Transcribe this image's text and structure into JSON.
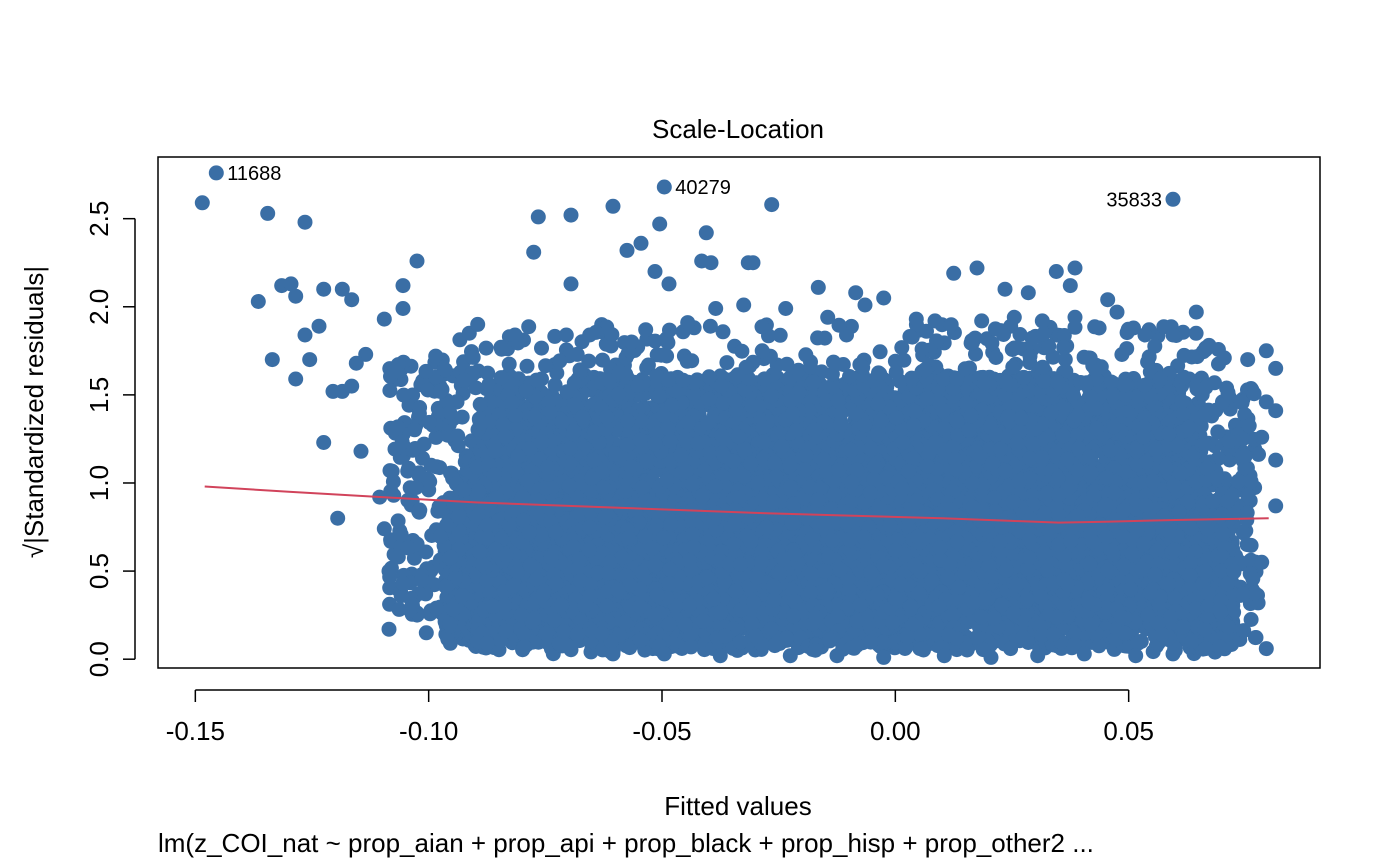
{
  "chart_data": {
    "type": "scatter",
    "title": "Scale-Location",
    "xlabel": "Fitted values",
    "ylabel": "Standardized residuals",
    "ylabel_prefix": "√|",
    "ylabel_suffix": "|",
    "subtitle": "lm(z_COI_nat ~ prop_aian + prop_api + prop_black + prop_hisp + prop_other2  ...",
    "xlim": [
      -0.158,
      0.091
    ],
    "ylim": [
      -0.05,
      2.85
    ],
    "x_ticks": [
      -0.15,
      -0.1,
      -0.05,
      0.0,
      0.05
    ],
    "x_tick_labels": [
      "-0.15",
      "-0.10",
      "-0.05",
      "0.00",
      "0.05"
    ],
    "y_ticks": [
      0.0,
      0.5,
      1.0,
      1.5,
      2.0,
      2.5
    ],
    "y_tick_labels": [
      "0.0",
      "0.5",
      "1.0",
      "1.5",
      "2.0",
      "2.5"
    ],
    "grid": false,
    "point_color": "#3A6EA5",
    "smooth_color": "#D1435B",
    "outliers": [
      {
        "label": "11688",
        "x": -0.1455,
        "y": 2.76
      },
      {
        "label": "40279",
        "x": -0.0495,
        "y": 2.68
      },
      {
        "label": "35833",
        "x": 0.0595,
        "y": 2.61
      }
    ],
    "points": [
      [
        -0.1485,
        2.59
      ],
      [
        -0.1345,
        2.53
      ],
      [
        -0.1265,
        2.48
      ],
      [
        -0.1365,
        2.03
      ],
      [
        -0.1315,
        2.12
      ],
      [
        -0.1295,
        2.13
      ],
      [
        -0.1285,
        2.06
      ],
      [
        -0.1225,
        2.1
      ],
      [
        -0.1265,
        1.84
      ],
      [
        -0.1235,
        1.89
      ],
      [
        -0.1335,
        1.7
      ],
      [
        -0.1255,
        1.7
      ],
      [
        -0.1285,
        1.59
      ],
      [
        -0.1205,
        1.52
      ],
      [
        -0.1185,
        1.52
      ],
      [
        -0.1165,
        1.55
      ],
      [
        -0.1185,
        2.1
      ],
      [
        -0.1165,
        2.04
      ],
      [
        -0.1095,
        1.93
      ],
      [
        -0.1025,
        2.26
      ],
      [
        -0.1055,
        2.12
      ],
      [
        -0.1055,
        1.99
      ],
      [
        -0.1135,
        1.73
      ],
      [
        -0.1155,
        1.68
      ],
      [
        -0.1225,
        1.23
      ],
      [
        -0.1145,
        1.18
      ],
      [
        -0.1195,
        0.8
      ],
      [
        -0.1105,
        0.92
      ],
      [
        -0.1095,
        0.74
      ],
      [
        -0.1075,
        0.93
      ],
      [
        -0.1085,
        0.5
      ],
      [
        -0.1065,
        0.58
      ],
      [
        -0.1055,
        0.43
      ],
      [
        -0.1035,
        0.31
      ],
      [
        -0.1015,
        0.45
      ],
      [
        -0.1085,
        0.17
      ],
      [
        -0.1005,
        0.15
      ],
      [
        -0.0765,
        2.51
      ],
      [
        -0.0775,
        2.31
      ],
      [
        -0.0695,
        2.52
      ],
      [
        -0.0695,
        2.13
      ],
      [
        -0.0605,
        2.57
      ],
      [
        -0.0575,
        2.32
      ],
      [
        -0.0545,
        2.36
      ],
      [
        -0.0505,
        2.47
      ],
      [
        -0.0515,
        2.2
      ],
      [
        -0.0485,
        2.13
      ],
      [
        -0.0405,
        2.42
      ],
      [
        -0.0415,
        2.26
      ],
      [
        -0.0395,
        2.25
      ],
      [
        -0.0315,
        2.25
      ],
      [
        -0.0305,
        2.25
      ],
      [
        -0.0265,
        2.58
      ],
      [
        -0.0165,
        2.11
      ],
      [
        -0.0085,
        2.08
      ],
      [
        0.0125,
        2.19
      ],
      [
        0.0175,
        2.22
      ],
      [
        0.0235,
        2.1
      ],
      [
        0.0285,
        2.08
      ],
      [
        0.0345,
        2.2
      ],
      [
        0.0385,
        2.22
      ],
      [
        0.0375,
        2.12
      ],
      [
        0.0455,
        2.04
      ],
      [
        0.0475,
        1.97
      ],
      [
        0.0535,
        1.84
      ],
      [
        0.0595,
        1.84
      ],
      [
        0.0645,
        1.97
      ],
      [
        0.0705,
        1.71
      ],
      [
        0.0755,
        1.7
      ],
      [
        0.0795,
        1.75
      ],
      [
        0.0815,
        1.65
      ],
      [
        0.0815,
        1.41
      ],
      [
        0.0795,
        1.46
      ],
      [
        0.0785,
        1.26
      ],
      [
        0.0815,
        1.13
      ],
      [
        0.0815,
        0.87
      ],
      [
        0.0785,
        0.55
      ],
      [
        0.0795,
        0.06
      ],
      [
        0.0685,
        0.04
      ],
      [
        0.0695,
        0.07
      ],
      [
        0.0695,
        0.28
      ],
      [
        0.0745,
        0.37
      ],
      [
        0.0725,
        0.5
      ],
      [
        0.0755,
        0.93
      ],
      [
        0.0735,
        1.01
      ],
      [
        -0.0925,
        0.96
      ],
      [
        -0.0945,
        0.88
      ],
      [
        -0.0955,
        1.4
      ],
      [
        -0.0975,
        1.52
      ],
      [
        -0.0985,
        1.72
      ],
      [
        -0.0895,
        1.9
      ],
      [
        -0.0845,
        1.77
      ],
      [
        -0.0815,
        1.84
      ],
      [
        -0.0705,
        1.84
      ],
      [
        -0.0655,
        1.84
      ],
      [
        -0.0565,
        1.8
      ],
      [
        -0.0535,
        1.87
      ],
      [
        -0.0445,
        1.91
      ],
      [
        -0.0385,
        1.99
      ],
      [
        -0.0325,
        2.01
      ],
      [
        -0.0235,
        1.99
      ],
      [
        -0.0145,
        1.94
      ],
      [
        -0.0065,
        2.01
      ],
      [
        -0.0025,
        2.05
      ],
      [
        0.0045,
        1.93
      ],
      [
        0.0085,
        1.92
      ],
      [
        0.0185,
        1.92
      ],
      [
        0.0255,
        1.94
      ],
      [
        0.0315,
        1.92
      ],
      [
        0.0385,
        1.94
      ],
      [
        -0.0955,
        0.2
      ],
      [
        -0.0895,
        0.1
      ],
      [
        -0.0875,
        0.09
      ],
      [
        -0.0835,
        0.16
      ],
      [
        -0.0795,
        0.07
      ],
      [
        -0.0705,
        0.08
      ],
      [
        -0.0605,
        0.03
      ],
      [
        -0.0495,
        0.03
      ],
      [
        -0.0375,
        0.02
      ],
      [
        -0.0225,
        0.02
      ],
      [
        -0.0125,
        0.02
      ],
      [
        -0.0025,
        0.01
      ],
      [
        0.0105,
        0.02
      ],
      [
        0.0205,
        0.01
      ],
      [
        0.0305,
        0.02
      ],
      [
        0.0405,
        0.03
      ],
      [
        0.0515,
        0.02
      ],
      [
        0.0595,
        0.03
      ],
      [
        0.0635,
        0.1
      ],
      [
        0.0665,
        0.06
      ]
    ],
    "smooth": [
      [
        -0.148,
        0.98
      ],
      [
        -0.13,
        0.95
      ],
      [
        -0.11,
        0.92
      ],
      [
        -0.09,
        0.89
      ],
      [
        -0.07,
        0.87
      ],
      [
        -0.05,
        0.85
      ],
      [
        -0.03,
        0.83
      ],
      [
        -0.01,
        0.815
      ],
      [
        0.01,
        0.8
      ],
      [
        0.025,
        0.785
      ],
      [
        0.035,
        0.775
      ],
      [
        0.045,
        0.78
      ],
      [
        0.06,
        0.79
      ],
      [
        0.08,
        0.8
      ]
    ]
  }
}
